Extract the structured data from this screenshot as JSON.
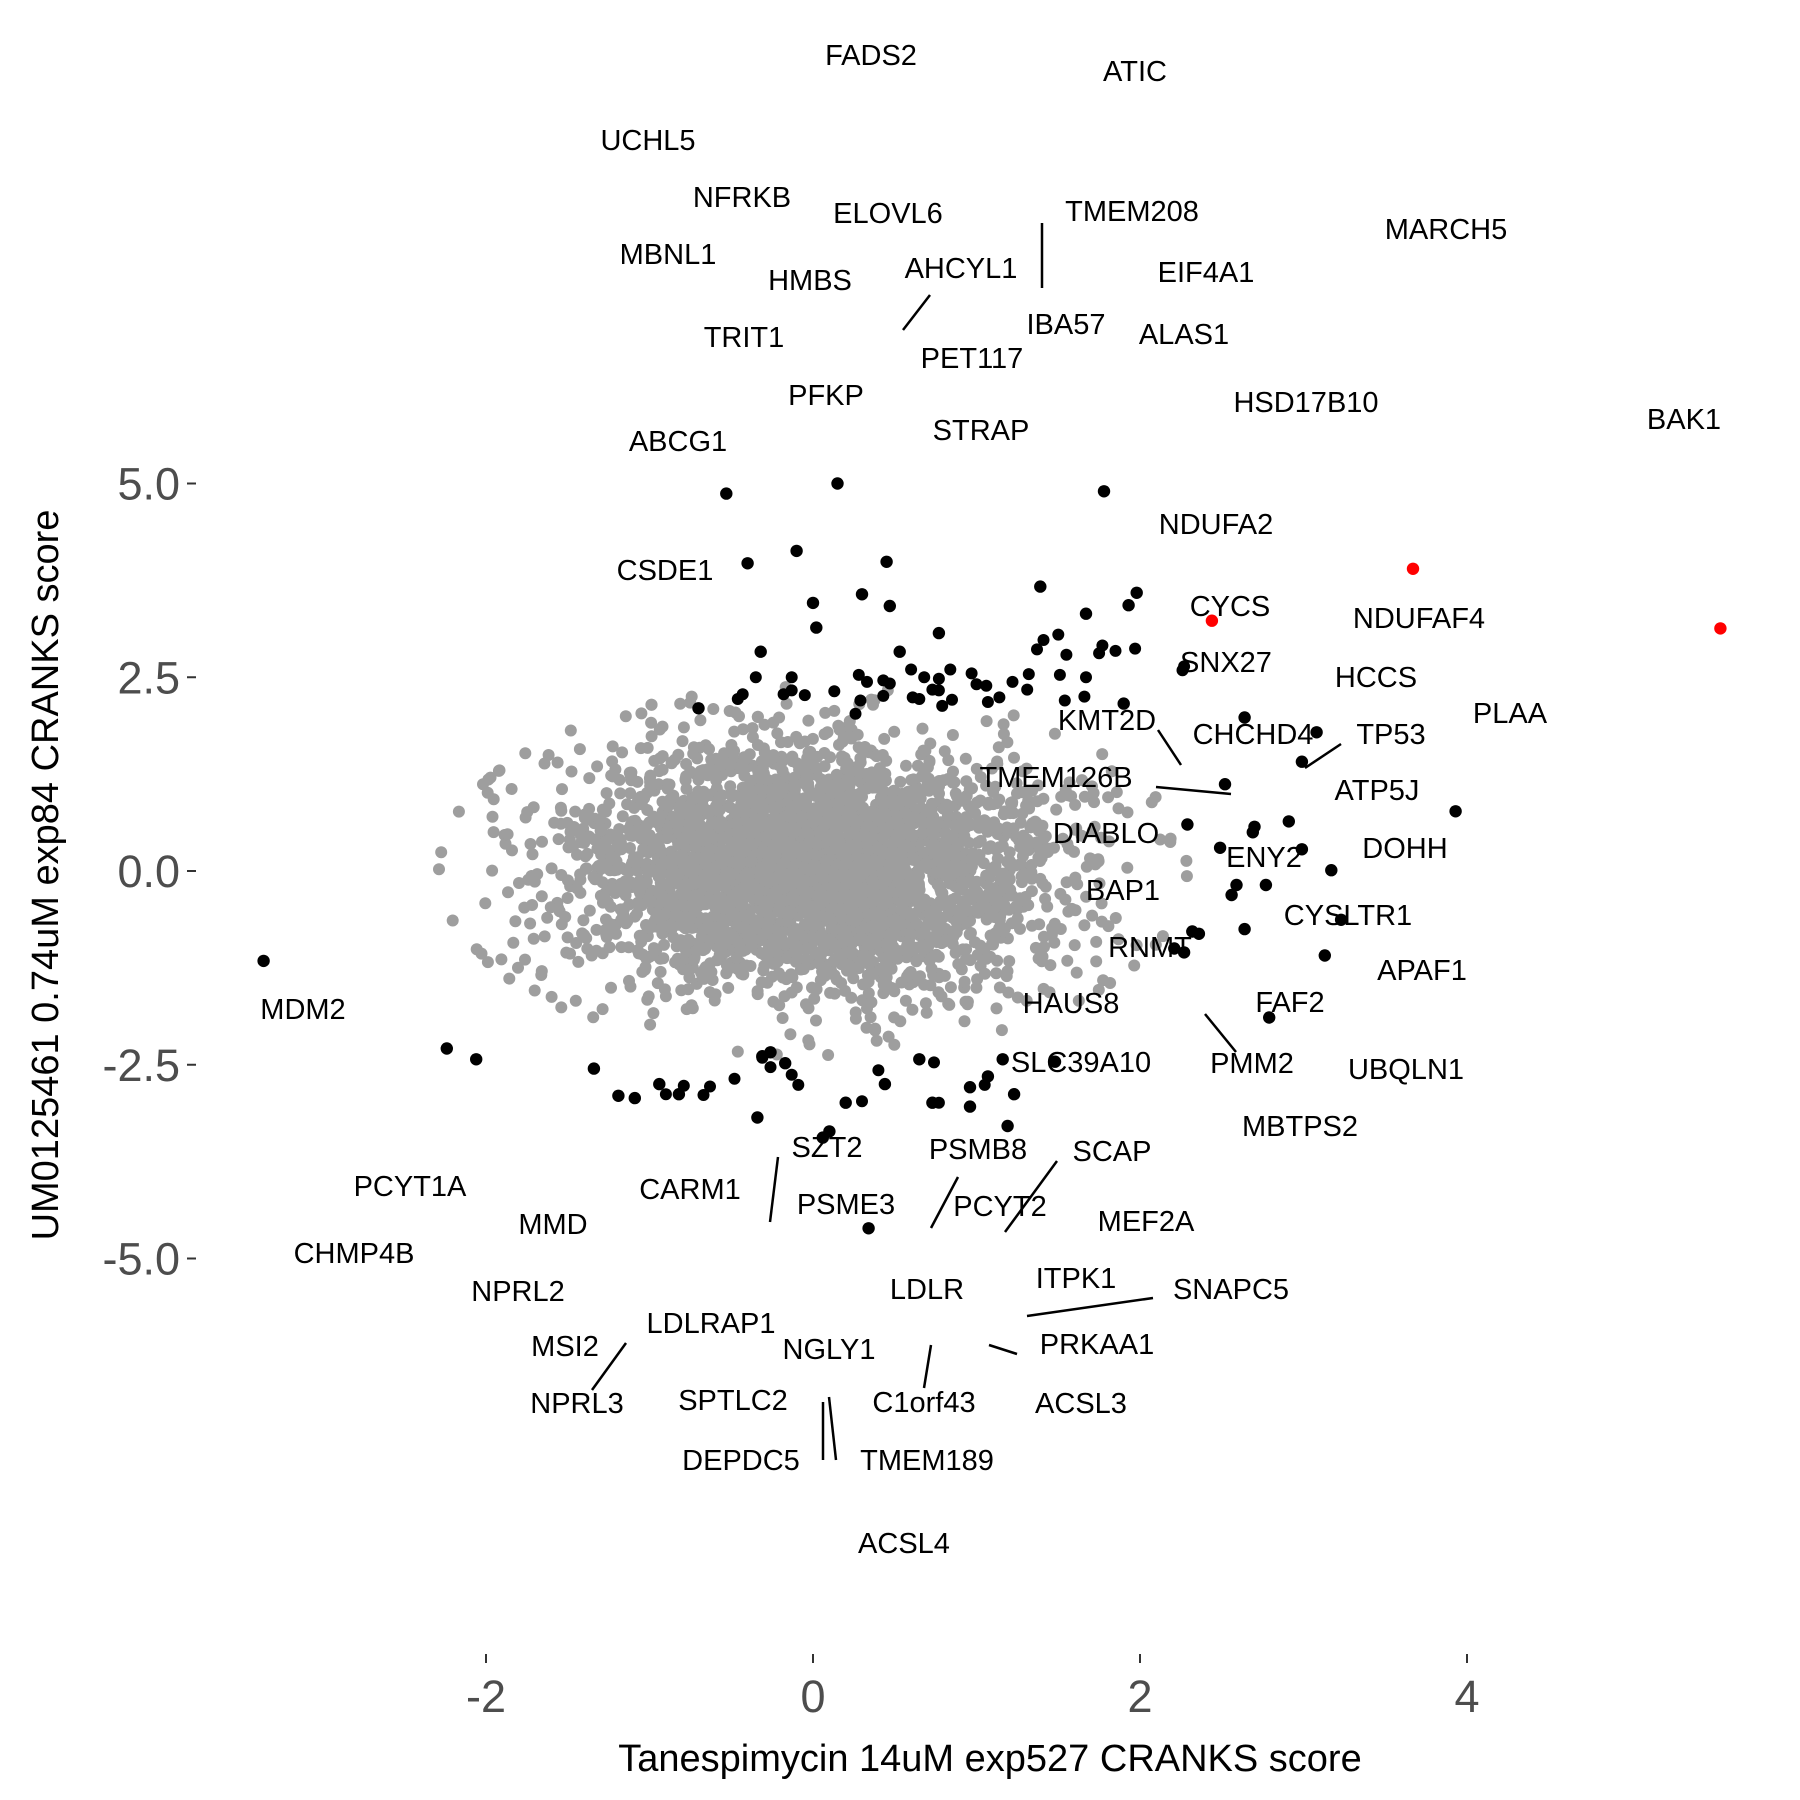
{
  "chart_data": {
    "type": "scatter",
    "title": "",
    "xlabel": "Tanespimycin 14uM exp527 CRANKS score",
    "ylabel": "UM0125461 0.74uM exp84 CRANKS score",
    "xlim": [
      -2.85,
      5.6
    ],
    "ylim": [
      -5.2,
      5.3
    ],
    "grid": false,
    "x_ticks": [
      -2,
      0,
      2,
      4
    ],
    "x_tick_labels": [
      "-2",
      "0",
      "2",
      "4"
    ],
    "y_ticks": [
      -5.0,
      -2.5,
      0.0,
      2.5,
      5.0
    ],
    "y_tick_labels": [
      "-5.0",
      "-2.5",
      "0.0",
      "2.5",
      "5.0"
    ],
    "colors": {
      "background": "#9e9e9e",
      "hit": "#000000",
      "highlight": "#ff0000"
    },
    "background_cloud": {
      "n_points": 3500,
      "x_center": 0.0,
      "x_sd": 0.75,
      "y_center": 0.0,
      "y_sd": 0.78,
      "color": "#9e9e9e"
    },
    "labeled_points": [
      {
        "gene": "FADS2",
        "x": 0.15,
        "y": 5.0,
        "color": "#000000"
      },
      {
        "gene": "ATIC",
        "x": 1.78,
        "y": 4.9,
        "color": "#000000"
      },
      {
        "gene": "UCHL5",
        "x": -0.53,
        "y": 4.87,
        "color": "#000000"
      },
      {
        "gene": "NFRKB",
        "x": -0.1,
        "y": 4.13,
        "color": "#000000"
      },
      {
        "gene": "ELOVL6",
        "x": 0.45,
        "y": 3.99,
        "color": "#000000"
      },
      {
        "gene": "TMEM208",
        "x": 1.39,
        "y": 3.67,
        "color": "#000000"
      },
      {
        "gene": "MARCH5",
        "x": 3.67,
        "y": 3.9,
        "color": "#ff0000"
      },
      {
        "gene": "MBNL1",
        "x": -0.4,
        "y": 3.97,
        "color": "#000000"
      },
      {
        "gene": "HMBS",
        "x": 0.3,
        "y": 3.57,
        "color": "#000000"
      },
      {
        "gene": "AHCYL1",
        "x": 0.47,
        "y": 3.42,
        "color": "#000000"
      },
      {
        "gene": "EIF4A1",
        "x": 1.98,
        "y": 3.59,
        "color": "#000000"
      },
      {
        "gene": "TRIT1",
        "x": 0.0,
        "y": 3.46,
        "color": "#000000"
      },
      {
        "gene": "IBA57",
        "x": 1.67,
        "y": 3.32,
        "color": "#000000"
      },
      {
        "gene": "ALAS1",
        "x": 1.93,
        "y": 3.43,
        "color": "#000000"
      },
      {
        "gene": "HSD17B10",
        "x": 2.44,
        "y": 3.23,
        "color": "#ff0000"
      },
      {
        "gene": "BAK1",
        "x": 5.55,
        "y": 3.13,
        "color": "#ff0000"
      },
      {
        "gene": "PET117",
        "x": 0.77,
        "y": 3.07,
        "color": "#000000"
      },
      {
        "gene": "PFKP",
        "x": 0.02,
        "y": 3.14,
        "color": "#000000"
      },
      {
        "gene": "STRAP",
        "x": 0.53,
        "y": 2.83,
        "color": "#000000"
      },
      {
        "gene": "ABCG1",
        "x": -0.32,
        "y": 2.83,
        "color": "#000000"
      },
      {
        "gene": "NDUFA2",
        "x": 1.9,
        "y": 2.16,
        "color": "#000000"
      },
      {
        "gene": "CSDE1",
        "x": -0.7,
        "y": 2.1,
        "color": "#000000"
      },
      {
        "gene": "NDUFAF4",
        "x": 3.08,
        "y": 1.79,
        "color": "#000000"
      },
      {
        "gene": "CYCS",
        "x": 2.64,
        "y": 1.98,
        "color": "#000000"
      },
      {
        "gene": "HCCS",
        "x": 2.99,
        "y": 1.41,
        "color": "#000000"
      },
      {
        "gene": "SNX27",
        "x": 2.52,
        "y": 1.12,
        "color": "#000000"
      },
      {
        "gene": "PLAA",
        "x": 3.93,
        "y": 0.77,
        "color": "#000000"
      },
      {
        "gene": "TP53",
        "x": 2.91,
        "y": 0.64,
        "color": "#000000"
      },
      {
        "gene": "KMT2D",
        "x": 2.29,
        "y": 0.6,
        "color": "#000000"
      },
      {
        "gene": "CHCHD4",
        "x": 2.7,
        "y": 0.57,
        "color": "#000000"
      },
      {
        "gene": "TMEM126B",
        "x": 2.69,
        "y": 0.5,
        "color": "#000000"
      },
      {
        "gene": "ATP5J",
        "x": 2.99,
        "y": 0.28,
        "color": "#000000"
      },
      {
        "gene": "DIABLO",
        "x": 2.49,
        "y": 0.3,
        "color": "#000000"
      },
      {
        "gene": "DOHH",
        "x": 3.17,
        "y": 0.01,
        "color": "#000000"
      },
      {
        "gene": "ENY2",
        "x": 2.59,
        "y": -0.18,
        "color": "#000000"
      },
      {
        "gene": "BAP1",
        "x": 2.77,
        "y": -0.18,
        "color": "#000000"
      },
      {
        "gene": "CYSLTR1",
        "x": 2.56,
        "y": -0.31,
        "color": "#000000"
      },
      {
        "gene": "RNMT",
        "x": 2.32,
        "y": -0.78,
        "color": "#000000"
      },
      {
        "gene": "APAF1",
        "x": 3.23,
        "y": -0.63,
        "color": "#000000"
      },
      {
        "gene": "FAF2",
        "x": 2.64,
        "y": -0.75,
        "color": "#000000"
      },
      {
        "gene": "HAUS8",
        "x": 2.36,
        "y": -0.81,
        "color": "#000000"
      },
      {
        "gene": "PMM2",
        "x": 2.27,
        "y": -1.05,
        "color": "#000000"
      },
      {
        "gene": "SLC39A10",
        "x": 2.21,
        "y": -1.0,
        "color": "#000000"
      },
      {
        "gene": "UBQLN1",
        "x": 3.13,
        "y": -1.09,
        "color": "#000000"
      },
      {
        "gene": "MDM2",
        "x": -3.36,
        "y": -1.16,
        "color": "#000000"
      },
      {
        "gene": "MBTPS2",
        "x": 2.79,
        "y": -1.89,
        "color": "#000000"
      },
      {
        "gene": "SZT2",
        "x": -0.26,
        "y": -2.34,
        "color": "#000000"
      },
      {
        "gene": "PSMB8",
        "x": 0.65,
        "y": -2.43,
        "color": "#000000"
      },
      {
        "gene": "SCAP",
        "x": 1.16,
        "y": -2.43,
        "color": "#000000"
      },
      {
        "gene": "CARM1",
        "x": -0.31,
        "y": -2.39,
        "color": "#000000"
      },
      {
        "gene": "PSME3",
        "x": -0.17,
        "y": -2.48,
        "color": "#000000"
      },
      {
        "gene": "PCYT2",
        "x": 1.07,
        "y": -2.65,
        "color": "#000000"
      },
      {
        "gene": "MEF2A",
        "x": 1.48,
        "y": -2.46,
        "color": "#000000"
      },
      {
        "gene": "PCYT1A",
        "x": -2.24,
        "y": -2.29,
        "color": "#000000"
      },
      {
        "gene": "MMD",
        "x": -2.06,
        "y": -2.43,
        "color": "#000000"
      },
      {
        "gene": "CHMP4B",
        "x": -1.34,
        "y": -2.55,
        "color": "#000000"
      },
      {
        "gene": "NPRL2",
        "x": -0.94,
        "y": -2.75,
        "color": "#000000"
      },
      {
        "gene": "ITPK1",
        "x": 0.96,
        "y": -2.79,
        "color": "#000000"
      },
      {
        "gene": "SNAPC5",
        "x": 1.23,
        "y": -2.88,
        "color": "#000000"
      },
      {
        "gene": "LDLR",
        "x": 0.44,
        "y": -2.75,
        "color": "#000000"
      },
      {
        "gene": "MSI2",
        "x": -1.19,
        "y": -2.9,
        "color": "#000000"
      },
      {
        "gene": "LDLRAP1",
        "x": -1.09,
        "y": -2.93,
        "color": "#000000"
      },
      {
        "gene": "NGLY1",
        "x": 0.2,
        "y": -2.99,
        "color": "#000000"
      },
      {
        "gene": "PRKAA1",
        "x": 0.96,
        "y": -3.04,
        "color": "#000000"
      },
      {
        "gene": "NPRL3",
        "x": -0.82,
        "y": -2.88,
        "color": "#000000"
      },
      {
        "gene": "SPTLC2",
        "x": -0.34,
        "y": -3.18,
        "color": "#000000"
      },
      {
        "gene": "C1orf43",
        "x": 0.73,
        "y": -2.99,
        "color": "#000000"
      },
      {
        "gene": "ACSL3",
        "x": 1.19,
        "y": -3.29,
        "color": "#000000"
      },
      {
        "gene": "DEPDC5",
        "x": 0.06,
        "y": -3.44,
        "color": "#000000"
      },
      {
        "gene": "TMEM189",
        "x": 0.1,
        "y": -3.36,
        "color": "#000000"
      },
      {
        "gene": "ACSL4",
        "x": 0.34,
        "y": -4.61,
        "color": "#000000"
      }
    ],
    "unlabeled_hits": [
      [
        -0.46,
        2.22
      ],
      [
        -0.43,
        2.28
      ],
      [
        -0.35,
        2.5
      ],
      [
        -0.18,
        2.28
      ],
      [
        -0.13,
        2.5
      ],
      [
        -0.13,
        2.33
      ],
      [
        0.13,
        2.32
      ],
      [
        0.28,
        2.53
      ],
      [
        0.33,
        2.44
      ],
      [
        0.43,
        2.46
      ],
      [
        0.47,
        2.42
      ],
      [
        0.6,
        2.6
      ],
      [
        0.68,
        2.5
      ],
      [
        0.77,
        2.33
      ],
      [
        0.77,
        2.48
      ],
      [
        0.84,
        2.6
      ],
      [
        0.97,
        2.55
      ],
      [
        1.0,
        2.41
      ],
      [
        1.06,
        2.39
      ],
      [
        1.14,
        2.24
      ],
      [
        1.22,
        2.44
      ],
      [
        1.32,
        2.54
      ],
      [
        1.31,
        2.34
      ],
      [
        1.37,
        2.86
      ],
      [
        1.51,
        2.53
      ],
      [
        1.67,
        2.5
      ],
      [
        1.75,
        2.81
      ],
      [
        1.77,
        2.91
      ],
      [
        1.85,
        2.84
      ],
      [
        1.97,
        2.87
      ],
      [
        2.26,
        2.59
      ],
      [
        2.27,
        2.64
      ],
      [
        1.66,
        2.25
      ],
      [
        1.54,
        2.2
      ],
      [
        0.29,
        2.2
      ],
      [
        0.43,
        2.26
      ],
      [
        0.61,
        2.24
      ],
      [
        0.65,
        2.22
      ],
      [
        0.79,
        2.13
      ],
      [
        0.85,
        2.21
      ],
      [
        1.07,
        2.18
      ],
      [
        1.41,
        2.98
      ],
      [
        1.5,
        3.05
      ],
      [
        1.55,
        2.79
      ],
      [
        -0.05,
        2.27
      ],
      [
        0.26,
        2.03
      ],
      [
        0.73,
        2.34
      ],
      [
        -0.31,
        -2.41
      ],
      [
        -0.26,
        -2.53
      ],
      [
        -0.13,
        -2.63
      ],
      [
        -0.48,
        -2.68
      ],
      [
        -0.63,
        -2.78
      ],
      [
        -0.9,
        -2.88
      ],
      [
        -0.79,
        -2.77
      ],
      [
        -0.67,
        -2.89
      ],
      [
        -0.09,
        -2.76
      ],
      [
        0.4,
        -2.57
      ],
      [
        0.74,
        -2.47
      ],
      [
        1.05,
        -2.76
      ],
      [
        0.77,
        -2.99
      ],
      [
        0.3,
        -2.97
      ]
    ]
  }
}
